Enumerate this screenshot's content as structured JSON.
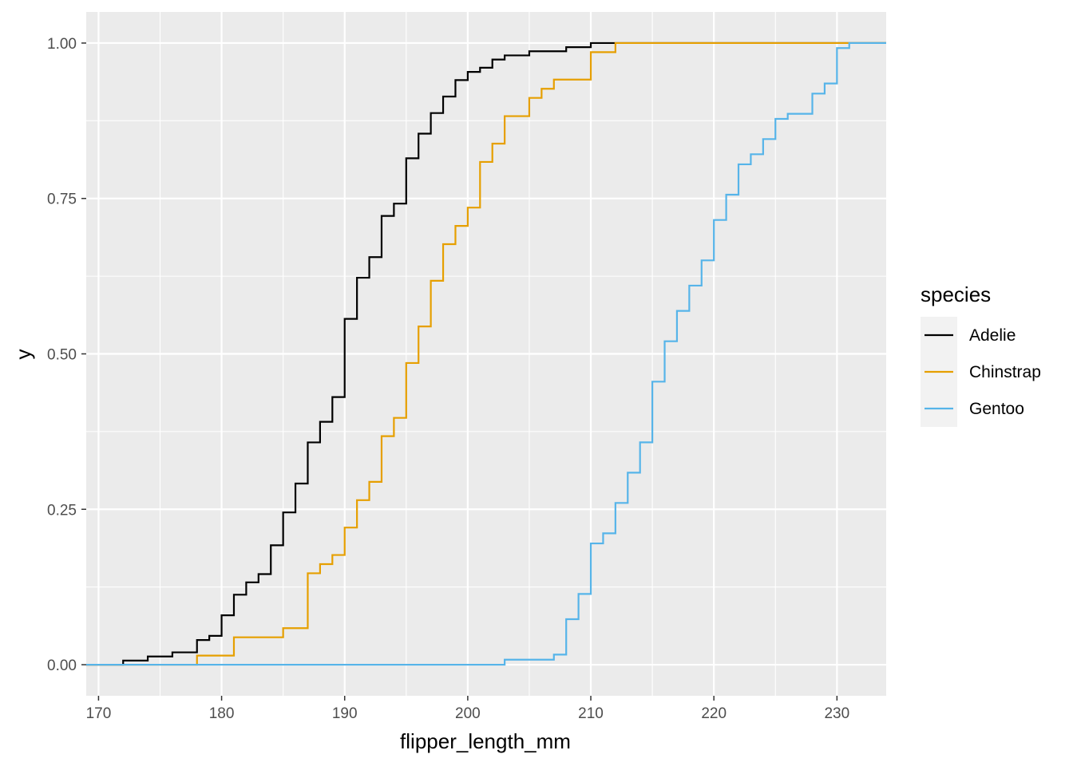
{
  "chart_data": {
    "type": "line",
    "subtype": "ecdf-step",
    "xlabel": "flipper_length_mm",
    "ylabel": "y",
    "xlim": [
      169,
      234
    ],
    "ylim": [
      -0.05,
      1.05
    ],
    "x_ticks": [
      170,
      180,
      190,
      200,
      210,
      220,
      230
    ],
    "y_ticks": [
      0.0,
      0.25,
      0.5,
      0.75,
      1.0
    ],
    "y_tick_labels": [
      "0.00",
      "0.25",
      "0.50",
      "0.75",
      "1.00"
    ],
    "grid": true,
    "legend": {
      "title": "species",
      "position": "right"
    },
    "series": [
      {
        "name": "Adelie",
        "color": "#000000",
        "steps": [
          [
            172,
            0.0066
          ],
          [
            174,
            0.0132
          ],
          [
            176,
            0.0199
          ],
          [
            178,
            0.0397
          ],
          [
            179,
            0.0464
          ],
          [
            180,
            0.0795
          ],
          [
            181,
            0.1126
          ],
          [
            182,
            0.1325
          ],
          [
            183,
            0.1457
          ],
          [
            184,
            0.1921
          ],
          [
            185,
            0.245
          ],
          [
            186,
            0.2914
          ],
          [
            187,
            0.3576
          ],
          [
            188,
            0.3907
          ],
          [
            189,
            0.4305
          ],
          [
            190,
            0.5563
          ],
          [
            191,
            0.6225
          ],
          [
            192,
            0.6556
          ],
          [
            193,
            0.7219
          ],
          [
            194,
            0.7417
          ],
          [
            195,
            0.8146
          ],
          [
            196,
            0.8543
          ],
          [
            197,
            0.8874
          ],
          [
            198,
            0.9139
          ],
          [
            199,
            0.9404
          ],
          [
            200,
            0.9536
          ],
          [
            201,
            0.9603
          ],
          [
            202,
            0.9735
          ],
          [
            203,
            0.9801
          ],
          [
            205,
            0.9868
          ],
          [
            208,
            0.9934
          ],
          [
            210,
            1.0
          ]
        ]
      },
      {
        "name": "Chinstrap",
        "color": "#E69F00",
        "steps": [
          [
            178,
            0.0147
          ],
          [
            181,
            0.0441
          ],
          [
            185,
            0.0588
          ],
          [
            187,
            0.1471
          ],
          [
            188,
            0.1618
          ],
          [
            189,
            0.1765
          ],
          [
            190,
            0.2206
          ],
          [
            191,
            0.2647
          ],
          [
            192,
            0.2941
          ],
          [
            193,
            0.3676
          ],
          [
            194,
            0.3971
          ],
          [
            195,
            0.4853
          ],
          [
            196,
            0.5441
          ],
          [
            197,
            0.6176
          ],
          [
            198,
            0.6765
          ],
          [
            199,
            0.7059
          ],
          [
            200,
            0.7353
          ],
          [
            201,
            0.8088
          ],
          [
            202,
            0.8382
          ],
          [
            203,
            0.8824
          ],
          [
            205,
            0.9118
          ],
          [
            206,
            0.9265
          ],
          [
            207,
            0.9412
          ],
          [
            210,
            0.9853
          ],
          [
            212,
            1.0
          ]
        ]
      },
      {
        "name": "Gentoo",
        "color": "#56B4E9",
        "steps": [
          [
            203,
            0.0081
          ],
          [
            207,
            0.0163
          ],
          [
            208,
            0.0732
          ],
          [
            209,
            0.1138
          ],
          [
            210,
            0.1951
          ],
          [
            211,
            0.2114
          ],
          [
            212,
            0.2602
          ],
          [
            213,
            0.3089
          ],
          [
            214,
            0.3577
          ],
          [
            215,
            0.4553
          ],
          [
            216,
            0.5203
          ],
          [
            217,
            0.5691
          ],
          [
            218,
            0.6098
          ],
          [
            219,
            0.6504
          ],
          [
            220,
            0.7154
          ],
          [
            221,
            0.7561
          ],
          [
            222,
            0.8049
          ],
          [
            223,
            0.8211
          ],
          [
            224,
            0.8455
          ],
          [
            225,
            0.878
          ],
          [
            226,
            0.8862
          ],
          [
            228,
            0.9187
          ],
          [
            229,
            0.935
          ],
          [
            230,
            0.9919
          ],
          [
            231,
            1.0
          ]
        ]
      }
    ]
  }
}
